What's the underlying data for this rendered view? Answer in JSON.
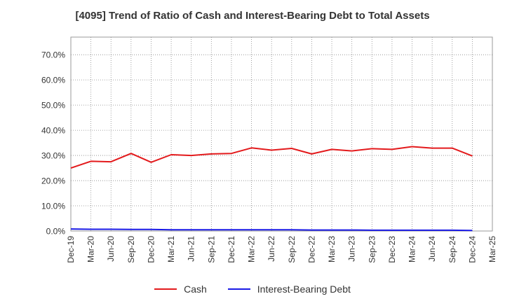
{
  "chart_data": {
    "type": "line",
    "title": "[4095]  Trend of Ratio of Cash and Interest-Bearing Debt to Total Assets",
    "xlabel": "",
    "ylabel": "",
    "x": [
      "Dec-19",
      "Mar-20",
      "Jun-20",
      "Sep-20",
      "Dec-20",
      "Mar-21",
      "Jun-21",
      "Sep-21",
      "Dec-21",
      "Mar-22",
      "Jun-22",
      "Sep-22",
      "Dec-22",
      "Mar-23",
      "Jun-23",
      "Sep-23",
      "Dec-23",
      "Mar-24",
      "Jun-24",
      "Sep-24",
      "Dec-24",
      "Mar-25"
    ],
    "y_ticks": [
      "0.0%",
      "10.0%",
      "20.0%",
      "30.0%",
      "40.0%",
      "50.0%",
      "60.0%",
      "70.0%"
    ],
    "ylim": [
      0,
      77
    ],
    "grid": true,
    "legend_position": "bottom",
    "series": [
      {
        "name": "Cash",
        "color": "#e31a1c",
        "values": [
          25.0,
          27.7,
          27.5,
          30.8,
          27.3,
          30.3,
          30.0,
          30.6,
          30.8,
          33.0,
          32.1,
          32.8,
          30.6,
          32.4,
          31.8,
          32.7,
          32.4,
          33.5,
          32.9,
          32.9,
          29.8,
          null
        ]
      },
      {
        "name": "Interest-Bearing Debt",
        "color": "#1a1ae6",
        "values": [
          0.8,
          0.7,
          0.7,
          0.6,
          0.6,
          0.5,
          0.5,
          0.5,
          0.5,
          0.5,
          0.5,
          0.5,
          0.4,
          0.4,
          0.4,
          0.3,
          0.3,
          0.3,
          0.3,
          0.3,
          0.2,
          null
        ]
      }
    ]
  }
}
